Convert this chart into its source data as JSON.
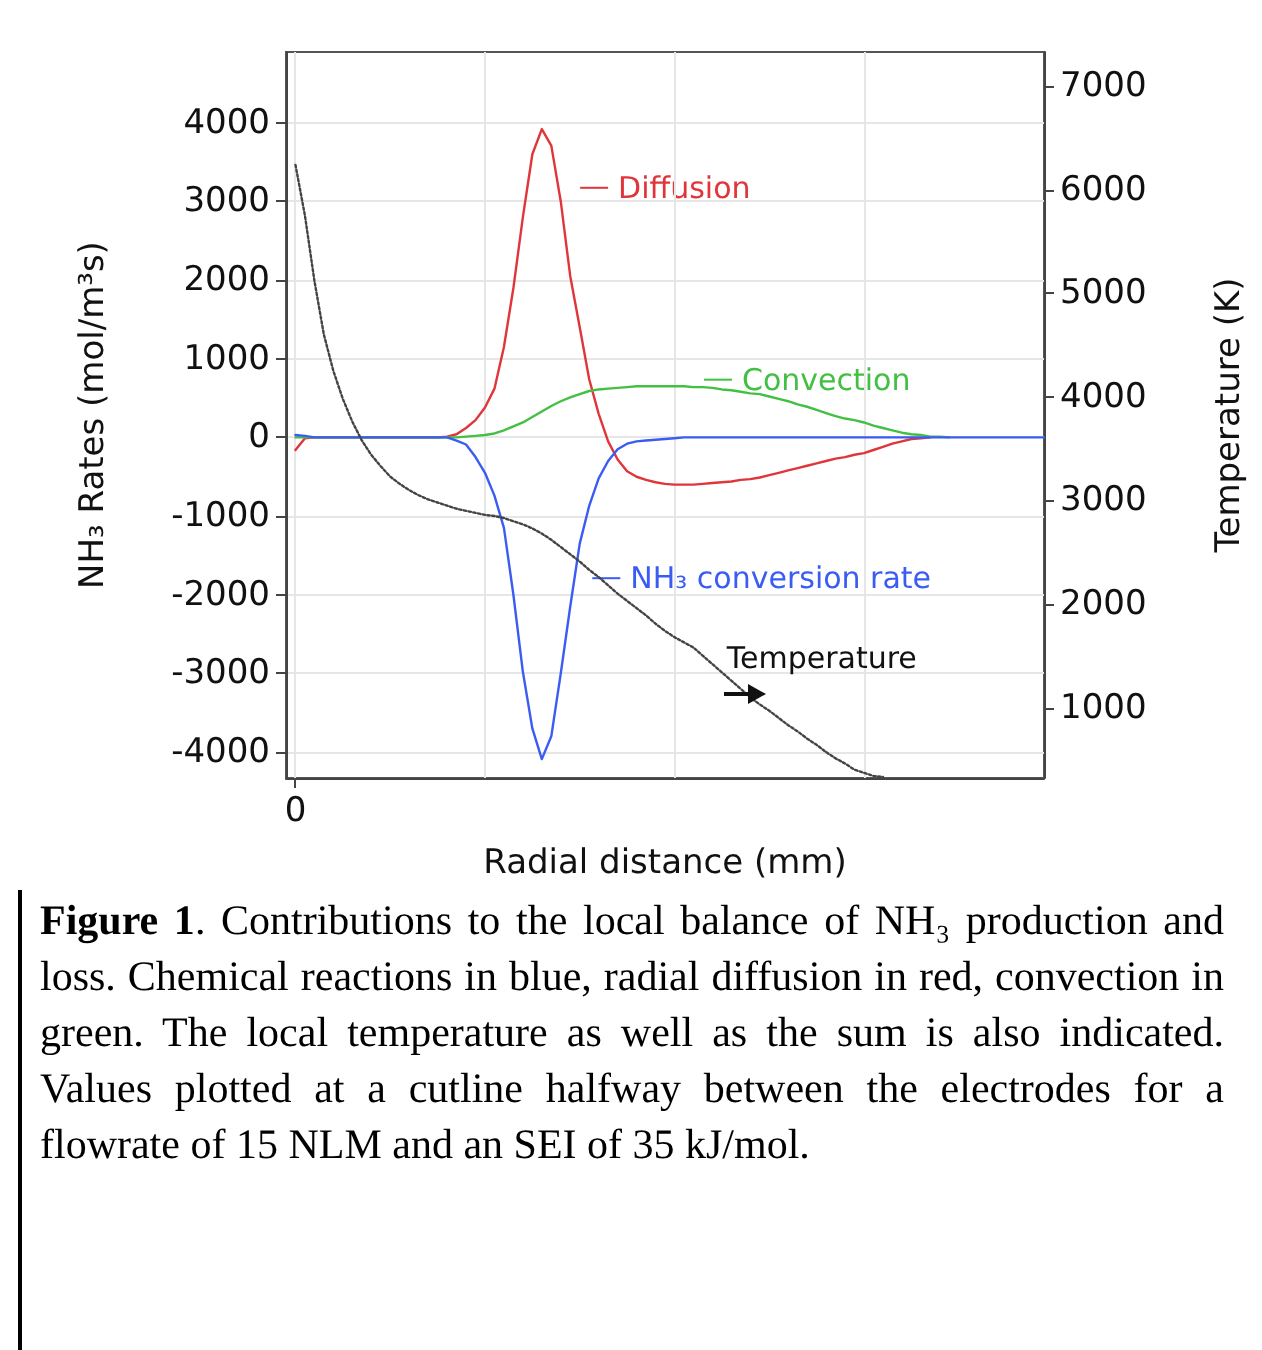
{
  "chart_data": {
    "type": "line",
    "xlabel": "Radial distance (mm)",
    "ylabel": "NH₃ Rates (mol/m³s)",
    "y2label": "Temperature (K)",
    "annotations": [
      "Temperature",
      "Figure 1. Contributions to the local balance of NH₃ production and loss. Chemical reactions in blue, radial diffusion in red, convection in green. The local temperature as well as the sum is also indicated. Values plotted at a cutline halfway between the electrodes for a flowrate of 15 NLM and an SEI of 35 kJ/mol."
    ],
    "categories": [
      null,
      "0",
      null,
      null,
      null,
      null,
      null,
      null,
      null,
      null,
      null,
      null,
      null,
      null,
      null,
      null,
      null,
      null,
      null,
      null,
      null,
      null,
      null,
      null,
      null,
      null,
      null,
      null,
      null,
      null,
      null,
      null,
      null,
      null,
      null,
      null,
      null,
      null,
      null,
      null,
      null,
      null,
      null,
      null,
      null,
      null,
      null,
      null,
      null,
      null,
      null,
      null,
      null,
      null,
      null,
      null,
      null,
      null,
      null,
      null,
      null,
      null,
      null,
      null,
      null,
      null,
      null,
      null,
      null,
      null,
      null,
      null,
      null,
      null,
      null,
      null,
      null,
      null,
      null,
      null,
      null
    ],
    "series": [
      {
        "name": "Diffusion",
        "color": "#e0353a",
        "values": [
          null,
          -160,
          -10,
          0,
          0,
          0,
          0,
          0,
          0,
          0,
          0,
          0,
          0,
          0,
          0,
          0,
          0,
          10,
          40,
          120,
          220,
          380,
          620,
          1150,
          1900,
          2800,
          3600,
          3920,
          3710,
          3000,
          2050,
          1400,
          740,
          300,
          -50,
          -280,
          -430,
          -500,
          -540,
          -570,
          -590,
          -600,
          -600,
          -600,
          -590,
          -580,
          -570,
          -560,
          -540,
          -530,
          -510,
          -480,
          -450,
          -420,
          -390,
          -360,
          -330,
          -300,
          -270,
          -250,
          -220,
          -200,
          -160,
          -120,
          -80,
          -50,
          -20,
          -10,
          0,
          null,
          null,
          null,
          null,
          null,
          null,
          null,
          null,
          null,
          null,
          null,
          null
        ]
      },
      {
        "name": "Convection",
        "color": "#43c043",
        "values": [
          null,
          0,
          0,
          0,
          0,
          0,
          0,
          0,
          0,
          0,
          0,
          0,
          0,
          0,
          0,
          0,
          0,
          0,
          0,
          10,
          20,
          30,
          50,
          90,
          140,
          190,
          260,
          330,
          400,
          460,
          510,
          550,
          590,
          610,
          620,
          630,
          640,
          650,
          650,
          650,
          650,
          650,
          650,
          640,
          640,
          630,
          610,
          600,
          580,
          560,
          550,
          520,
          490,
          460,
          420,
          390,
          350,
          310,
          270,
          240,
          220,
          190,
          150,
          120,
          90,
          60,
          40,
          30,
          10,
          10,
          0,
          null,
          null,
          null,
          null,
          null,
          null,
          null,
          null,
          null,
          null
        ]
      },
      {
        "name": "NH₃ conversion rate",
        "color": "#3b5cf2",
        "values": [
          null,
          30,
          20,
          0,
          0,
          0,
          0,
          0,
          0,
          0,
          0,
          0,
          0,
          0,
          0,
          0,
          0,
          0,
          -40,
          -90,
          -250,
          -450,
          -740,
          -1150,
          -2000,
          -2980,
          -3700,
          -4090,
          -3800,
          -3000,
          -2150,
          -1350,
          -870,
          -520,
          -300,
          -150,
          -80,
          -50,
          -40,
          -30,
          -20,
          -10,
          0,
          0,
          0,
          0,
          0,
          0,
          0,
          0,
          0,
          0,
          0,
          0,
          0,
          0,
          0,
          0,
          0,
          0,
          0,
          0,
          0,
          0,
          0,
          0,
          0,
          0,
          0,
          0,
          0,
          0,
          0,
          0,
          0,
          0,
          0,
          0,
          0,
          0,
          0
        ]
      },
      {
        "color": "#444444",
        "axis": "y2",
        "line_style": "dotted",
        "values": [
          null,
          6240,
          5750,
          5120,
          4600,
          4250,
          3980,
          3760,
          3580,
          3440,
          3330,
          3230,
          3160,
          3100,
          3050,
          3010,
          2980,
          2950,
          2920,
          2900,
          2880,
          2860,
          2850,
          2830,
          2800,
          2770,
          2730,
          2680,
          2620,
          2550,
          2480,
          2410,
          2330,
          2260,
          2180,
          2100,
          2030,
          1960,
          1890,
          1810,
          1740,
          1680,
          1630,
          1580,
          1500,
          1420,
          1340,
          1260,
          1180,
          1100,
          1030,
          970,
          900,
          830,
          770,
          700,
          640,
          570,
          510,
          460,
          400,
          370,
          340,
          330,
          null,
          null,
          null,
          null,
          null,
          null,
          null,
          null,
          null,
          null,
          null,
          null,
          null,
          null,
          null,
          null,
          null
        ]
      }
    ],
    "ylim": [
      -4330,
      4900
    ],
    "yticks": [
      -4000,
      -3000,
      -2000,
      -1000,
      0,
      1000,
      2000,
      3000,
      4000
    ],
    "y2lim": [
      320,
      7330
    ],
    "y2ticks": [
      1000,
      2000,
      3000,
      4000,
      5000,
      6000,
      7000
    ],
    "grid": true,
    "legend": "top right",
    "marker": "none",
    "line_style": "solid"
  }
}
